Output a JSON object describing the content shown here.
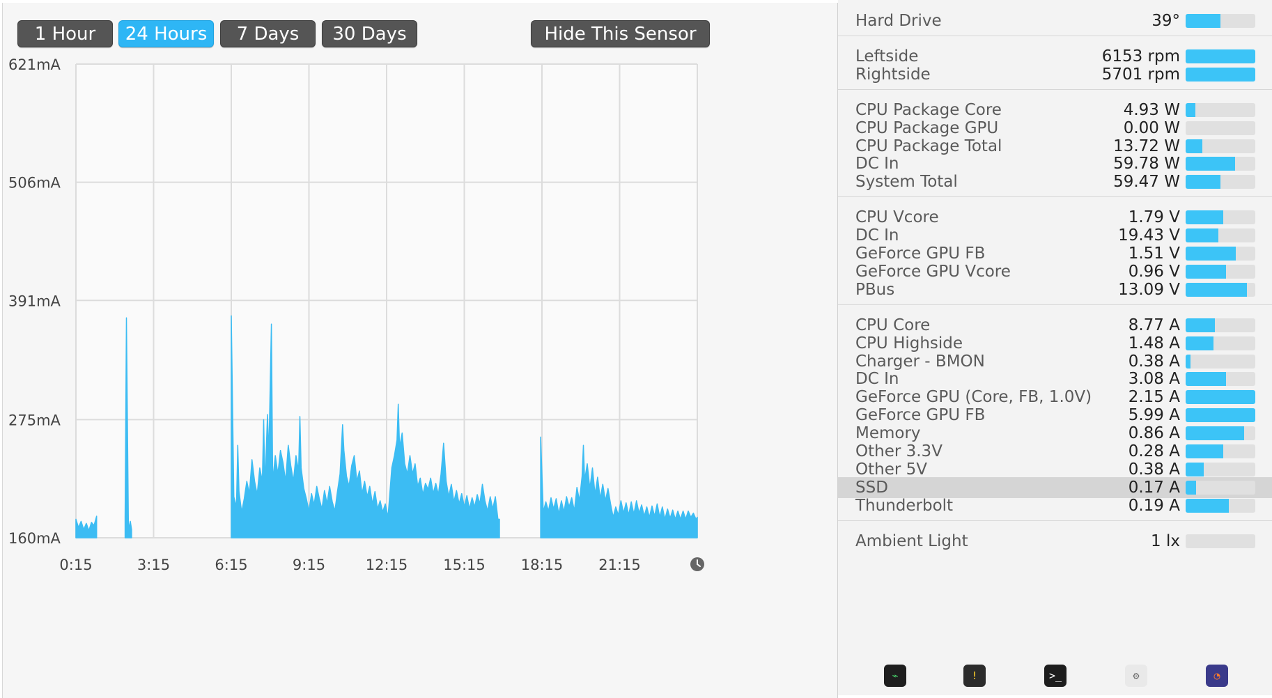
{
  "range_buttons": [
    {
      "label": "1 Hour",
      "active": false
    },
    {
      "label": "24 Hours",
      "active": true
    },
    {
      "label": "7 Days",
      "active": false
    },
    {
      "label": "30 Days",
      "active": false
    }
  ],
  "hide_sensor_label": "Hide This Sensor",
  "chart_data": {
    "type": "area",
    "ytick_labels": [
      "621mA",
      "506mA",
      "391mA",
      "275mA",
      "160mA"
    ],
    "ytick_values": [
      621,
      506,
      391,
      275,
      160
    ],
    "xtick_labels": [
      "0:15",
      "3:15",
      "6:15",
      "9:15",
      "12:15",
      "15:15",
      "18:15",
      "21:15"
    ],
    "xtick_hours": [
      0.25,
      3.25,
      6.25,
      9.25,
      12.25,
      15.25,
      18.25,
      21.25
    ],
    "ylim": [
      160,
      621
    ],
    "xlim_hours": [
      0.25,
      24.25
    ],
    "grid": true,
    "color": "#3cbcf3",
    "series": [
      {
        "values": [
          [
            0.25,
            178
          ],
          [
            0.35,
            170
          ],
          [
            0.45,
            176
          ],
          [
            0.55,
            168
          ],
          [
            0.65,
            174
          ],
          [
            0.75,
            167
          ],
          [
            0.85,
            175
          ],
          [
            0.95,
            172
          ],
          [
            1.05,
            181
          ]
        ]
      },
      {
        "values": [
          [
            2.15,
            180
          ],
          [
            2.2,
            374
          ],
          [
            2.28,
            168
          ],
          [
            2.35,
            176
          ],
          [
            2.4,
            168
          ]
        ]
      },
      {
        "values": [
          [
            6.25,
            376
          ],
          [
            6.35,
            200
          ],
          [
            6.45,
            190
          ],
          [
            6.5,
            250
          ],
          [
            6.55,
            205
          ],
          [
            6.65,
            185
          ],
          [
            6.75,
            198
          ],
          [
            6.85,
            215
          ],
          [
            6.95,
            203
          ],
          [
            7.05,
            236
          ],
          [
            7.15,
            215
          ],
          [
            7.25,
            202
          ],
          [
            7.35,
            228
          ],
          [
            7.45,
            215
          ],
          [
            7.5,
            275
          ],
          [
            7.55,
            210
          ],
          [
            7.65,
            280
          ],
          [
            7.7,
            240
          ],
          [
            7.8,
            368
          ],
          [
            7.85,
            215
          ],
          [
            7.95,
            240
          ],
          [
            8.05,
            222
          ],
          [
            8.15,
            245
          ],
          [
            8.25,
            233
          ],
          [
            8.35,
            215
          ],
          [
            8.45,
            250
          ],
          [
            8.55,
            230
          ],
          [
            8.65,
            215
          ],
          [
            8.75,
            240
          ],
          [
            8.85,
            225
          ],
          [
            8.9,
            278
          ],
          [
            8.95,
            228
          ],
          [
            9.05,
            208
          ],
          [
            9.15,
            198
          ],
          [
            9.25,
            186
          ],
          [
            9.35,
            203
          ],
          [
            9.45,
            192
          ],
          [
            9.55,
            210
          ],
          [
            9.65,
            198
          ],
          [
            9.75,
            188
          ],
          [
            9.85,
            206
          ],
          [
            9.95,
            193
          ],
          [
            10.05,
            210
          ],
          [
            10.15,
            195
          ],
          [
            10.25,
            186
          ],
          [
            10.35,
            205
          ],
          [
            10.45,
            222
          ],
          [
            10.55,
            270
          ],
          [
            10.6,
            245
          ],
          [
            10.7,
            220
          ],
          [
            10.8,
            210
          ],
          [
            10.9,
            230
          ],
          [
            11.0,
            240
          ],
          [
            11.1,
            215
          ],
          [
            11.2,
            225
          ],
          [
            11.3,
            203
          ],
          [
            11.4,
            215
          ],
          [
            11.5,
            200
          ],
          [
            11.6,
            210
          ],
          [
            11.7,
            193
          ],
          [
            11.8,
            205
          ],
          [
            11.9,
            188
          ],
          [
            12.0,
            196
          ],
          [
            12.1,
            185
          ],
          [
            12.2,
            193
          ],
          [
            12.3,
            180
          ],
          [
            12.35,
            195
          ],
          [
            12.45,
            228
          ],
          [
            12.55,
            240
          ],
          [
            12.65,
            255
          ],
          [
            12.7,
            290
          ],
          [
            12.75,
            248
          ],
          [
            12.85,
            262
          ],
          [
            12.95,
            232
          ],
          [
            13.05,
            222
          ],
          [
            13.15,
            240
          ],
          [
            13.25,
            222
          ],
          [
            13.35,
            232
          ],
          [
            13.45,
            210
          ],
          [
            13.55,
            218
          ],
          [
            13.65,
            202
          ],
          [
            13.75,
            213
          ],
          [
            13.85,
            207
          ],
          [
            13.95,
            218
          ],
          [
            14.05,
            203
          ],
          [
            14.15,
            213
          ],
          [
            14.25,
            202
          ],
          [
            14.35,
            222
          ],
          [
            14.45,
            252
          ],
          [
            14.55,
            215
          ],
          [
            14.65,
            200
          ],
          [
            14.75,
            212
          ],
          [
            14.85,
            195
          ],
          [
            14.95,
            206
          ],
          [
            15.05,
            193
          ],
          [
            15.15,
            203
          ],
          [
            15.25,
            190
          ],
          [
            15.35,
            201
          ],
          [
            15.45,
            188
          ],
          [
            15.55,
            199
          ],
          [
            15.65,
            190
          ],
          [
            15.75,
            202
          ],
          [
            15.85,
            193
          ],
          [
            15.95,
            212
          ],
          [
            16.05,
            196
          ],
          [
            16.15,
            186
          ],
          [
            16.25,
            200
          ],
          [
            16.35,
            188
          ],
          [
            16.45,
            200
          ],
          [
            16.55,
            178
          ],
          [
            16.61,
            178
          ]
        ]
      },
      {
        "values": [
          [
            18.2,
            258
          ],
          [
            18.3,
            185
          ],
          [
            18.4,
            195
          ],
          [
            18.5,
            186
          ],
          [
            18.6,
            199
          ],
          [
            18.7,
            188
          ],
          [
            18.8,
            198
          ],
          [
            18.9,
            183
          ],
          [
            19.0,
            196
          ],
          [
            19.1,
            185
          ],
          [
            19.2,
            200
          ],
          [
            19.3,
            190
          ],
          [
            19.4,
            199
          ],
          [
            19.5,
            186
          ],
          [
            19.6,
            209
          ],
          [
            19.7,
            196
          ],
          [
            19.8,
            220
          ],
          [
            19.85,
            250
          ],
          [
            19.9,
            216
          ],
          [
            20.0,
            232
          ],
          [
            20.1,
            208
          ],
          [
            20.2,
            228
          ],
          [
            20.3,
            202
          ],
          [
            20.4,
            219
          ],
          [
            20.5,
            198
          ],
          [
            20.6,
            212
          ],
          [
            20.7,
            196
          ],
          [
            20.8,
            208
          ],
          [
            20.9,
            193
          ],
          [
            21.0,
            180
          ],
          [
            21.1,
            190
          ],
          [
            21.2,
            182
          ],
          [
            21.3,
            196
          ],
          [
            21.4,
            184
          ],
          [
            21.5,
            194
          ],
          [
            21.6,
            182
          ],
          [
            21.7,
            195
          ],
          [
            21.8,
            183
          ],
          [
            21.9,
            196
          ],
          [
            22.0,
            184
          ],
          [
            22.1,
            192
          ],
          [
            22.2,
            181
          ],
          [
            22.3,
            190
          ],
          [
            22.4,
            180
          ],
          [
            22.5,
            191
          ],
          [
            22.6,
            181
          ],
          [
            22.7,
            193
          ],
          [
            22.8,
            180
          ],
          [
            22.9,
            190
          ],
          [
            23.0,
            178
          ],
          [
            23.1,
            188
          ],
          [
            23.2,
            179
          ],
          [
            23.3,
            187
          ],
          [
            23.4,
            178
          ],
          [
            23.5,
            186
          ],
          [
            23.6,
            178
          ],
          [
            23.7,
            186
          ],
          [
            23.8,
            178
          ],
          [
            23.9,
            186
          ],
          [
            24.0,
            180
          ],
          [
            24.1,
            184
          ],
          [
            24.2,
            178
          ],
          [
            24.25,
            180
          ]
        ]
      }
    ]
  },
  "sensor_groups": [
    [
      {
        "label": "Hard Drive",
        "value": "39°",
        "level": 0.5,
        "highlight": false
      }
    ],
    [
      {
        "label": "Leftside",
        "value": "6153 rpm",
        "level": 1.0,
        "highlight": false
      },
      {
        "label": "Rightside",
        "value": "5701 rpm",
        "level": 1.0,
        "highlight": false
      }
    ],
    [
      {
        "label": "CPU Package Core",
        "value": "4.93 W",
        "level": 0.14,
        "highlight": false
      },
      {
        "label": "CPU Package GPU",
        "value": "0.00 W",
        "level": 0.0,
        "highlight": false
      },
      {
        "label": "CPU Package Total",
        "value": "13.72 W",
        "level": 0.24,
        "highlight": false
      },
      {
        "label": "DC In",
        "value": "59.78 W",
        "level": 0.71,
        "highlight": false
      },
      {
        "label": "System Total",
        "value": "59.47 W",
        "level": 0.5,
        "highlight": false
      }
    ],
    [
      {
        "label": "CPU Vcore",
        "value": "1.79 V",
        "level": 0.54,
        "highlight": false
      },
      {
        "label": "DC In",
        "value": "19.43 V",
        "level": 0.47,
        "highlight": false
      },
      {
        "label": "GeForce GPU FB",
        "value": "1.51 V",
        "level": 0.72,
        "highlight": false
      },
      {
        "label": "GeForce GPU Vcore",
        "value": "0.96 V",
        "level": 0.58,
        "highlight": false
      },
      {
        "label": "PBus",
        "value": "13.09 V",
        "level": 0.88,
        "highlight": false
      }
    ],
    [
      {
        "label": "CPU Core",
        "value": "8.77 A",
        "level": 0.42,
        "highlight": false
      },
      {
        "label": "CPU Highside",
        "value": "1.48 A",
        "level": 0.4,
        "highlight": false
      },
      {
        "label": "Charger - BMON",
        "value": "0.38 A",
        "level": 0.07,
        "highlight": false
      },
      {
        "label": "DC In",
        "value": "3.08 A",
        "level": 0.58,
        "highlight": false
      },
      {
        "label": "GeForce GPU (Core, FB, 1.0V)",
        "value": "2.15 A",
        "level": 1.0,
        "highlight": false
      },
      {
        "label": "GeForce GPU FB",
        "value": "5.99 A",
        "level": 1.0,
        "highlight": false
      },
      {
        "label": "Memory",
        "value": "0.86 A",
        "level": 0.84,
        "highlight": false
      },
      {
        "label": "Other 3.3V",
        "value": "0.28 A",
        "level": 0.54,
        "highlight": false
      },
      {
        "label": "Other 5V",
        "value": "0.38 A",
        "level": 0.26,
        "highlight": false
      },
      {
        "label": "SSD",
        "value": "0.17 A",
        "level": 0.15,
        "highlight": true
      },
      {
        "label": "Thunderbolt",
        "value": "0.19 A",
        "level": 0.62,
        "highlight": false
      }
    ],
    [
      {
        "label": "Ambient Light",
        "value": "1 lx",
        "level": 0.0,
        "highlight": false
      }
    ]
  ],
  "dock_icons": [
    {
      "name": "activity-monitor-icon",
      "color": "#1e1e1e",
      "glyph": "⌁",
      "glyph_color": "#49d66c"
    },
    {
      "name": "console-icon",
      "color": "#2b2b2b",
      "glyph": "!",
      "glyph_color": "#ffd028"
    },
    {
      "name": "terminal-icon",
      "color": "#1d1d1d",
      "glyph": ">_",
      "glyph_color": "#ffffff"
    },
    {
      "name": "system-information-icon",
      "color": "#e9e9e9",
      "glyph": "⚙",
      "glyph_color": "#6b6b6b"
    },
    {
      "name": "istat-menus-icon",
      "color": "#3a3a8a",
      "glyph": "◔",
      "glyph_color": "#ff7a2a"
    }
  ]
}
